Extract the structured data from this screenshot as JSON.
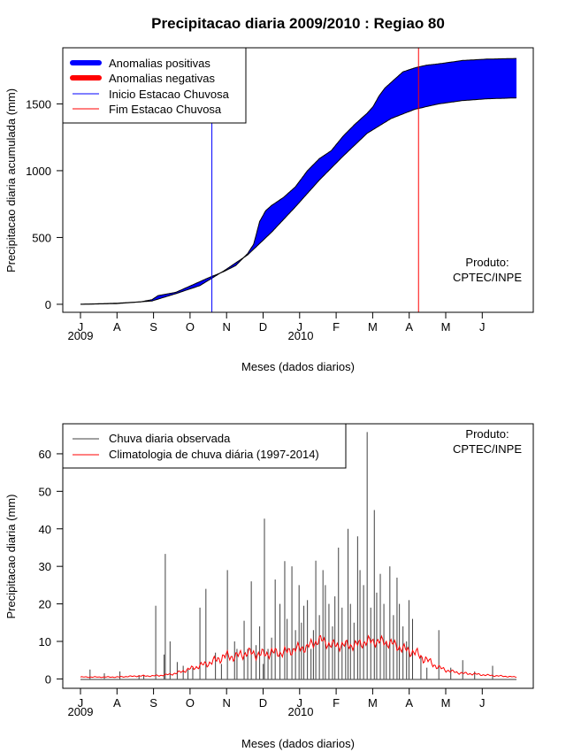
{
  "chart_data": [
    {
      "type": "area",
      "title": "Precipitacao diaria 2009/2010 : Regiao 80",
      "xlabel": "Meses (dados diarios)",
      "ylabel": "Precipitacao diaria acumulada (mm)",
      "ylim": [
        -60,
        1920
      ],
      "yticks": [
        0,
        500,
        1000,
        1500
      ],
      "xticks": [
        "J",
        "A",
        "S",
        "O",
        "N",
        "D",
        "J",
        "F",
        "M",
        "A",
        "M",
        "J"
      ],
      "year_labels": [
        "2009",
        "2010"
      ],
      "credit": [
        "Produto:",
        "CPTEC/INPE"
      ],
      "legend": [
        {
          "label": "Anomalias positivas",
          "color": "#0000ff"
        },
        {
          "label": "Anomalias negativas",
          "color": "#ff0000"
        },
        {
          "label": "Inicio Estacao Chuvosa",
          "color": "#0000ff"
        },
        {
          "label": "Fim Estacao Chuvosa",
          "color": "#ff0000"
        }
      ],
      "rainy_season_start_day": 110,
      "rainy_season_end_day": 283,
      "climatology_series": {
        "name": "Climatologia acumulada",
        "x": [
          0,
          30,
          60,
          80,
          100,
          120,
          140,
          160,
          180,
          200,
          220,
          240,
          260,
          280,
          300,
          320,
          340,
          365
        ],
        "values": [
          0,
          5,
          25,
          80,
          140,
          250,
          370,
          540,
          730,
          930,
          1110,
          1280,
          1390,
          1460,
          1500,
          1525,
          1538,
          1545
        ]
      },
      "observed_series": {
        "name": "Observada acumulada",
        "x": [
          0,
          30,
          50,
          60,
          65,
          80,
          95,
          105,
          120,
          130,
          140,
          145,
          150,
          155,
          160,
          170,
          180,
          190,
          200,
          210,
          220,
          230,
          240,
          245,
          250,
          255,
          260,
          265,
          270,
          280,
          290,
          300,
          320,
          340,
          365
        ],
        "values": [
          0,
          8,
          18,
          35,
          65,
          90,
          150,
          190,
          245,
          290,
          380,
          450,
          620,
          700,
          740,
          800,
          880,
          1000,
          1090,
          1150,
          1260,
          1350,
          1430,
          1480,
          1560,
          1620,
          1660,
          1700,
          1740,
          1770,
          1790,
          1800,
          1825,
          1835,
          1840
        ]
      }
    },
    {
      "type": "bar",
      "xlabel": "Meses (dados diarios)",
      "ylabel": "Precipitacao diaria (mm)",
      "ylim": [
        -2.5,
        68
      ],
      "yticks": [
        0,
        10,
        20,
        30,
        40,
        50,
        60
      ],
      "xticks": [
        "J",
        "A",
        "S",
        "O",
        "N",
        "D",
        "J",
        "F",
        "M",
        "A",
        "M",
        "J"
      ],
      "year_labels": [
        "2009",
        "2010"
      ],
      "credit": [
        "Produto:",
        "CPTEC/INPE"
      ],
      "legend": [
        {
          "label": "Chuva diaria observada",
          "color": "#404040"
        },
        {
          "label": "Climatologia de chuva diária (1997-2014)",
          "color": "#ff0000"
        }
      ],
      "daily_rain": {
        "x": [
          8,
          20,
          33,
          49,
          53,
          63,
          70,
          71,
          75,
          81,
          86,
          90,
          94,
          100,
          105,
          113,
          118,
          123,
          129,
          131,
          137,
          140,
          143,
          147,
          150,
          153,
          154,
          157,
          160,
          163,
          167,
          171,
          173,
          177,
          180,
          183,
          185,
          187,
          190,
          193,
          195,
          197,
          200,
          203,
          205,
          208,
          211,
          213,
          216,
          219,
          222,
          224,
          226,
          229,
          232,
          234,
          237,
          240,
          243,
          246,
          248,
          251,
          254,
          256,
          259,
          262,
          265,
          267,
          270,
          273,
          275,
          278,
          285,
          290,
          300,
          310,
          320,
          330,
          345
        ],
        "values": [
          2.5,
          1.5,
          2,
          1,
          1,
          19.5,
          6.5,
          33.3,
          10,
          4.5,
          3.5,
          2.5,
          3,
          19,
          24,
          7,
          4,
          29,
          10,
          8,
          15.5,
          8,
          26,
          9,
          14,
          4,
          42.7,
          8,
          11,
          26.5,
          20,
          31.4,
          16,
          30,
          13,
          25,
          15,
          19.5,
          21,
          8,
          13,
          31.5,
          17,
          29,
          25,
          20,
          14,
          22,
          35,
          19,
          10,
          40,
          20,
          15,
          38,
          29,
          25,
          65.8,
          19,
          45,
          23,
          28,
          20,
          10,
          30,
          17,
          27,
          20,
          14,
          10,
          21,
          16,
          6,
          3,
          13,
          3,
          5,
          2,
          3.5
        ]
      },
      "climatology_daily": {
        "x": [
          0,
          30,
          50,
          60,
          70,
          80,
          90,
          100,
          110,
          120,
          130,
          140,
          150,
          160,
          170,
          180,
          190,
          200,
          210,
          220,
          230,
          240,
          250,
          260,
          270,
          280,
          290,
          300,
          310,
          320,
          330,
          340,
          350,
          365
        ],
        "values": [
          0.5,
          0.5,
          0.8,
          0.8,
          1,
          1.5,
          2.5,
          3.5,
          4.5,
          6,
          6,
          7,
          6.5,
          7,
          7,
          8,
          8.5,
          10.5,
          9,
          9,
          9,
          10,
          10,
          9.5,
          8,
          7,
          5,
          3,
          2,
          1.5,
          1.3,
          1,
          0.8,
          0.5
        ]
      }
    }
  ]
}
